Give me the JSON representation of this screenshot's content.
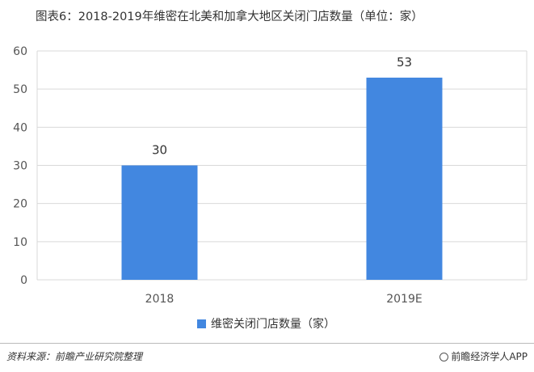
{
  "chart_data": {
    "type": "bar",
    "title": "图表6：2018-2019年维密在北美和加拿大地区关闭门店数量（单位：家）",
    "categories": [
      "2018",
      "2019E"
    ],
    "series": [
      {
        "name": "维密关闭门店数量（家）",
        "values": [
          30,
          53
        ],
        "color": "#4287e0"
      }
    ],
    "ylim": [
      0,
      60
    ],
    "yticks": [
      0,
      10,
      20,
      30,
      40,
      50,
      60
    ],
    "grid": true,
    "legend": "bottom",
    "xlabel": "",
    "ylabel": ""
  },
  "footer": {
    "source": "资料来源：前瞻产业研究院整理",
    "brand": "前瞻经济学人APP"
  }
}
